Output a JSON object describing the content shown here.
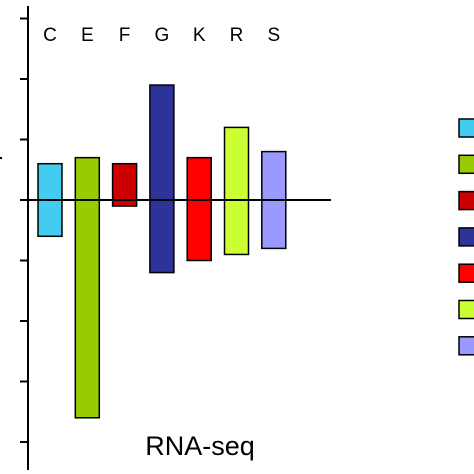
{
  "chart_data": {
    "type": "bar",
    "title": "RNA-seq",
    "categories": [
      "C",
      "E",
      "F",
      "G",
      "K",
      "R",
      "S"
    ],
    "bars": [
      {
        "category": "C",
        "top": 0.6,
        "bottom": -0.6,
        "color": "#44ccf0"
      },
      {
        "category": "E",
        "top": 0.7,
        "bottom": -3.6,
        "color": "#99cc00"
      },
      {
        "category": "F",
        "top": 0.6,
        "bottom": -0.1,
        "color": "#cc0000"
      },
      {
        "category": "G",
        "top": 1.9,
        "bottom": -1.2,
        "color": "#2d3399"
      },
      {
        "category": "K",
        "top": 0.7,
        "bottom": -1.0,
        "color": "#ff0000"
      },
      {
        "category": "R",
        "top": 1.2,
        "bottom": -0.9,
        "color": "#ccff33"
      },
      {
        "category": "S",
        "top": 0.8,
        "bottom": -0.8,
        "color": "#9999ff"
      }
    ],
    "baseline": 0,
    "ylim": [
      -4.3,
      3.0
    ],
    "legend": {
      "position": "right",
      "colors": [
        "#44ccf0",
        "#99cc00",
        "#cc0000",
        "#2d3399",
        "#ff0000",
        "#ccff33",
        "#9999ff"
      ]
    }
  }
}
